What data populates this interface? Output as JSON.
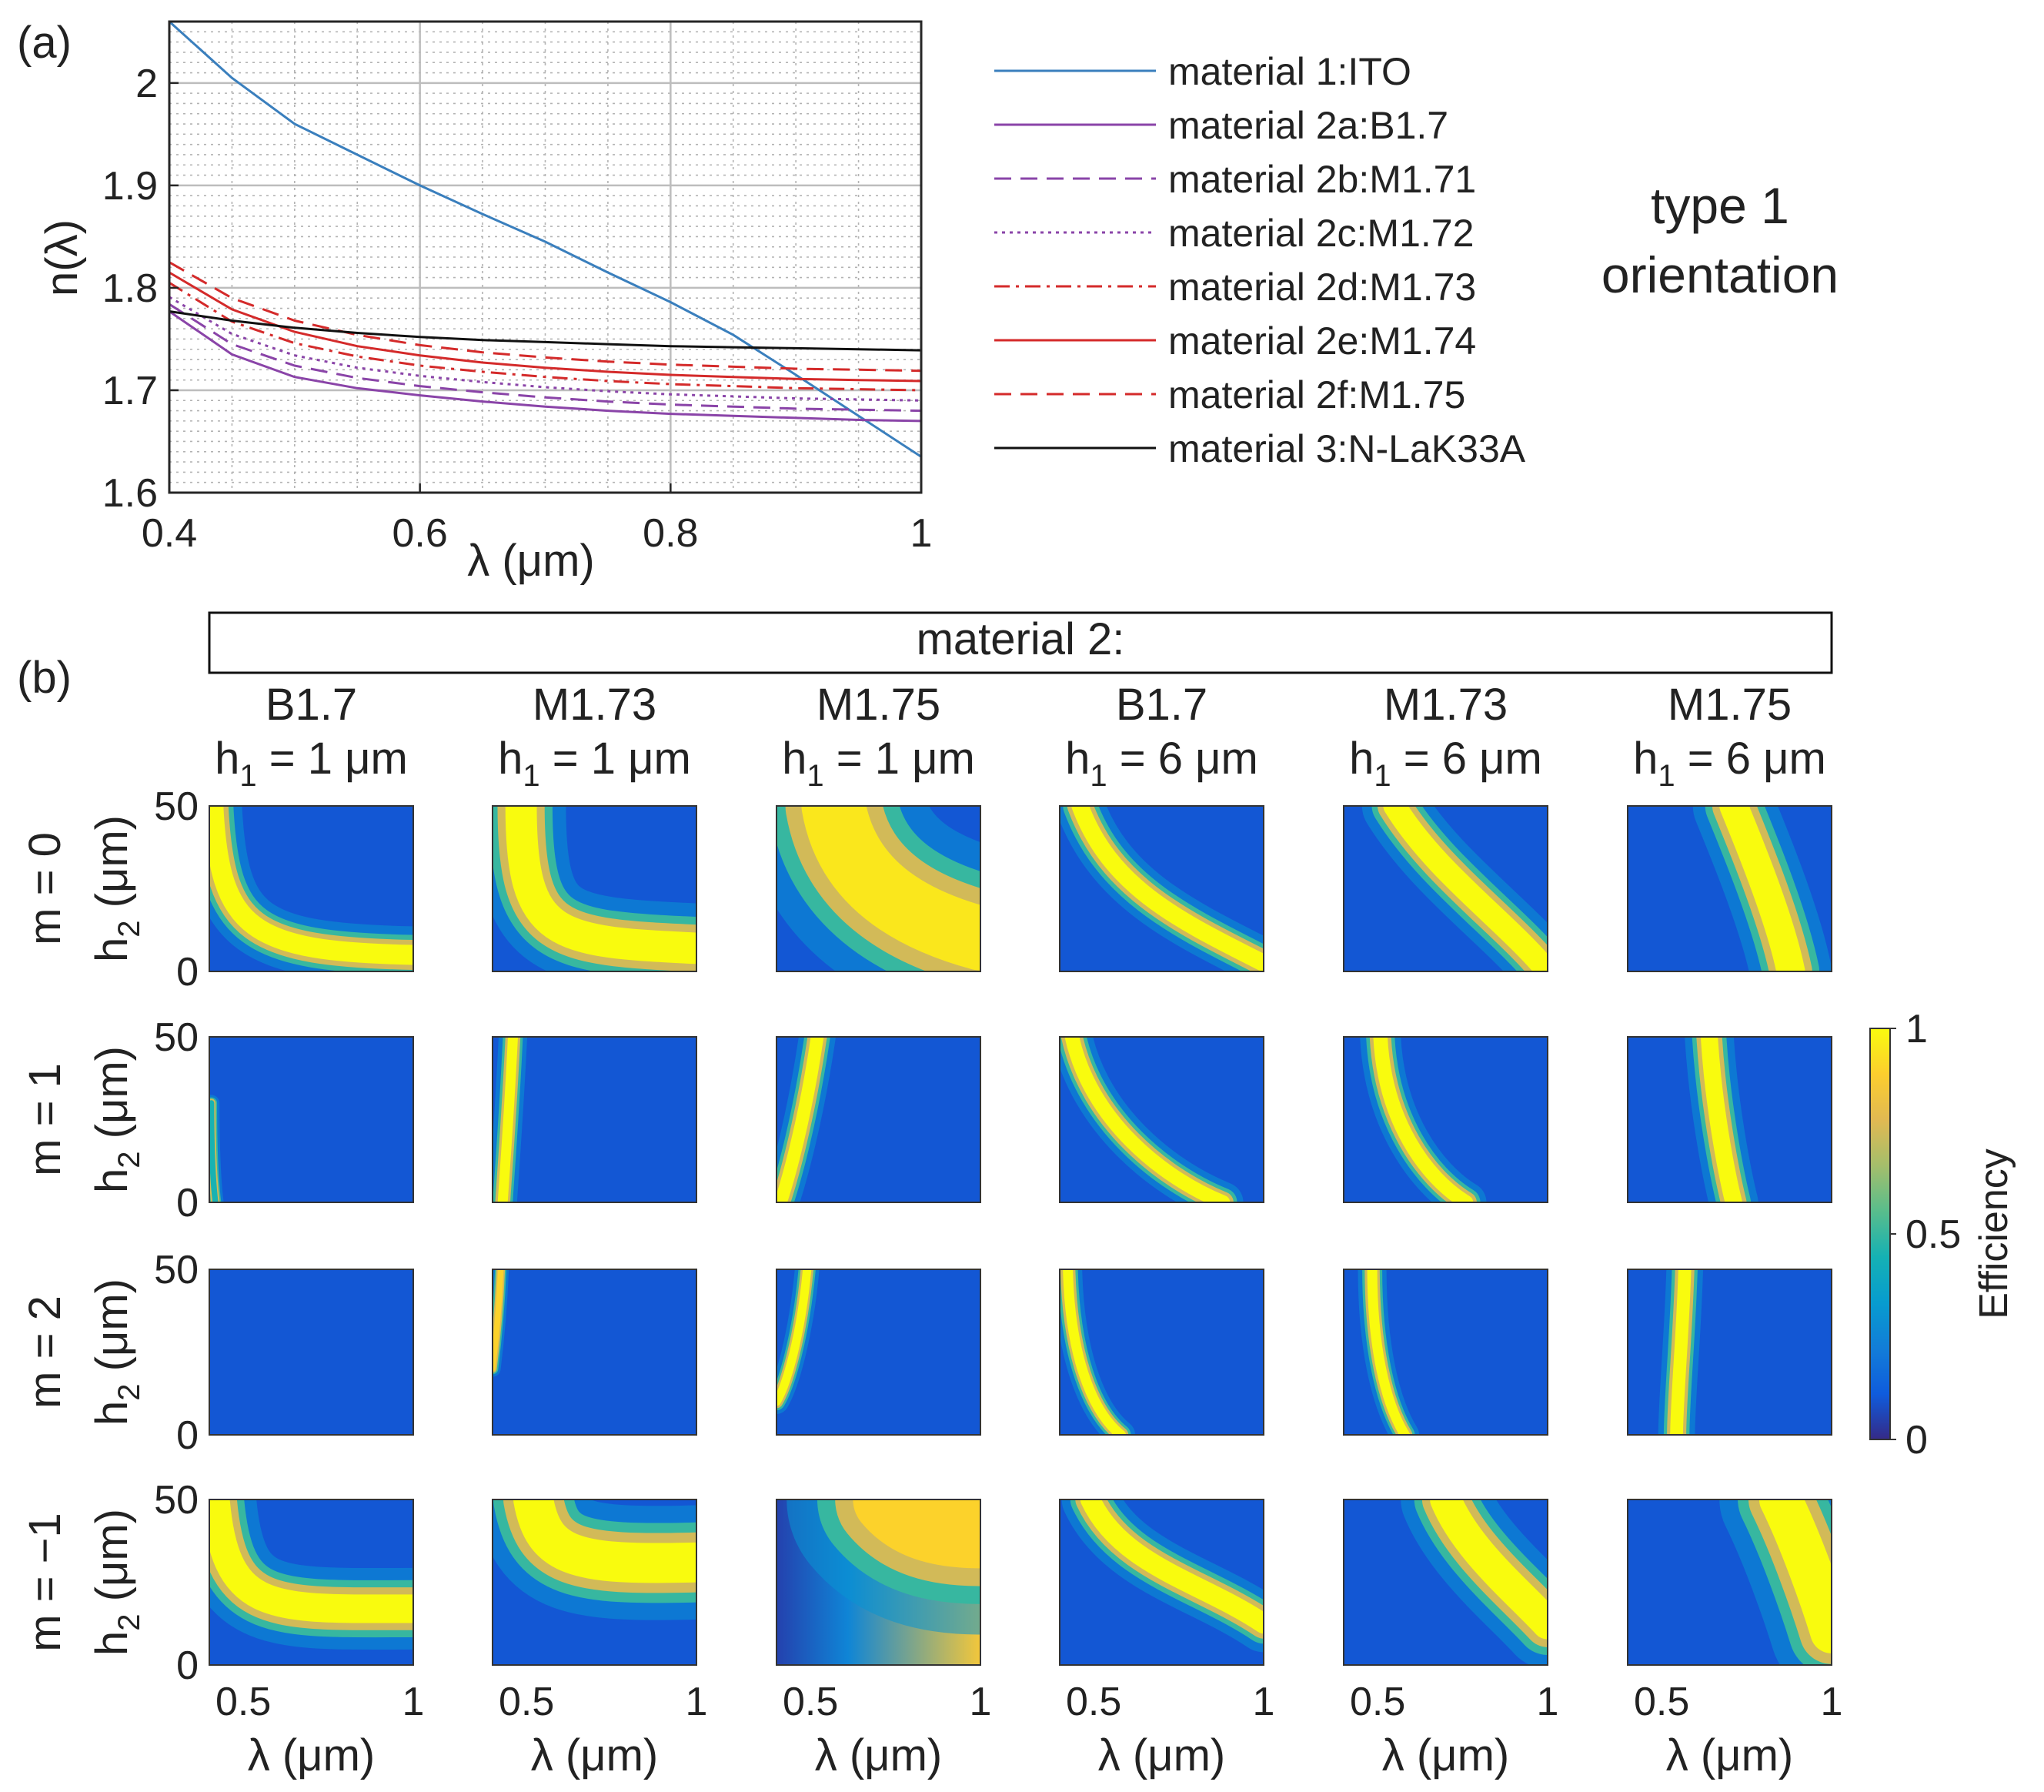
{
  "chart_data": [
    {
      "type": "line",
      "panel_label": "(a)",
      "xlabel": "λ (μm)",
      "ylabel": "n(λ)",
      "xlim": [
        0.4,
        1.0
      ],
      "ylim": [
        1.6,
        2.06
      ],
      "xticks": [
        "0.4",
        "0.6",
        "0.8",
        "1"
      ],
      "yticks": [
        "1.6",
        "1.7",
        "1.8",
        "1.9",
        "2"
      ],
      "grid": "major and minor",
      "legend_position": "right",
      "note_lines": [
        "type 1",
        "orientation"
      ],
      "x": [
        0.4,
        0.45,
        0.5,
        0.55,
        0.6,
        0.65,
        0.7,
        0.75,
        0.8,
        0.85,
        0.9,
        0.95,
        1.0
      ],
      "series": [
        {
          "name": "material 1:ITO",
          "color": "#3a7fbd",
          "dash": "solid",
          "values": [
            2.06,
            2.005,
            1.96,
            1.93,
            1.9,
            1.872,
            1.845,
            1.815,
            1.786,
            1.754,
            1.715,
            1.675,
            1.635
          ]
        },
        {
          "name": "material 2a:B1.7",
          "color": "#8a44a8",
          "dash": "solid",
          "values": [
            1.777,
            1.735,
            1.713,
            1.702,
            1.695,
            1.689,
            1.684,
            1.68,
            1.677,
            1.675,
            1.673,
            1.671,
            1.67
          ]
        },
        {
          "name": "material 2b:M1.71",
          "color": "#8a44a8",
          "dash": "dashed",
          "values": [
            1.784,
            1.745,
            1.724,
            1.712,
            1.704,
            1.698,
            1.693,
            1.689,
            1.686,
            1.684,
            1.682,
            1.681,
            1.68
          ]
        },
        {
          "name": "material 2c:M1.72",
          "color": "#8a44a8",
          "dash": "dotted",
          "values": [
            1.791,
            1.755,
            1.734,
            1.722,
            1.714,
            1.708,
            1.703,
            1.699,
            1.696,
            1.694,
            1.692,
            1.691,
            1.69
          ]
        },
        {
          "name": "material 2d:M1.73",
          "color": "#d42a2a",
          "dash": "dashdot",
          "values": [
            1.805,
            1.767,
            1.746,
            1.733,
            1.724,
            1.718,
            1.713,
            1.709,
            1.706,
            1.704,
            1.702,
            1.701,
            1.7
          ]
        },
        {
          "name": "material 2e:M1.74",
          "color": "#d42a2a",
          "dash": "solid",
          "values": [
            1.815,
            1.779,
            1.757,
            1.743,
            1.734,
            1.727,
            1.722,
            1.718,
            1.715,
            1.713,
            1.711,
            1.71,
            1.709
          ]
        },
        {
          "name": "material 2f:M1.75",
          "color": "#d42a2a",
          "dash": "dashed",
          "values": [
            1.825,
            1.79,
            1.768,
            1.754,
            1.744,
            1.737,
            1.732,
            1.728,
            1.725,
            1.723,
            1.721,
            1.72,
            1.719
          ]
        },
        {
          "name": "material 3:N-LaK33A",
          "color": "#111111",
          "dash": "solid",
          "values": [
            1.777,
            1.768,
            1.761,
            1.756,
            1.752,
            1.749,
            1.747,
            1.745,
            1.743,
            1.742,
            1.741,
            1.74,
            1.739
          ]
        }
      ]
    },
    {
      "type": "heatmap",
      "panel_label": "(b)",
      "header": "material 2:",
      "columns": [
        {
          "material": "B1.7",
          "h1": "= 1 μm"
        },
        {
          "material": "M1.73",
          "h1": "= 1 μm"
        },
        {
          "material": "M1.75",
          "h1": "= 1 μm"
        },
        {
          "material": "B1.7",
          "h1": "= 6 μm"
        },
        {
          "material": "M1.73",
          "h1": "= 6 μm"
        },
        {
          "material": "M1.75",
          "h1": "= 6 μm"
        }
      ],
      "h1_symbol": "h",
      "h1_sub": "1",
      "rows": [
        "m = 0",
        "m = 1",
        "m = 2",
        "m = −1"
      ],
      "ylabel_main": "h",
      "ylabel_sub": "2",
      "ylabel_unit": " (μm)",
      "yticks": [
        "0",
        "50"
      ],
      "ylim": [
        0,
        50
      ],
      "xlim": [
        0.4,
        1.0
      ],
      "xticks": [
        "0.5",
        "1"
      ],
      "xlabel": "λ (μm)",
      "colorbar": {
        "label": "Efficiency",
        "range": [
          0,
          1
        ],
        "ticks": [
          "0",
          "0.5",
          "1"
        ],
        "colormap": "parula"
      }
    }
  ]
}
